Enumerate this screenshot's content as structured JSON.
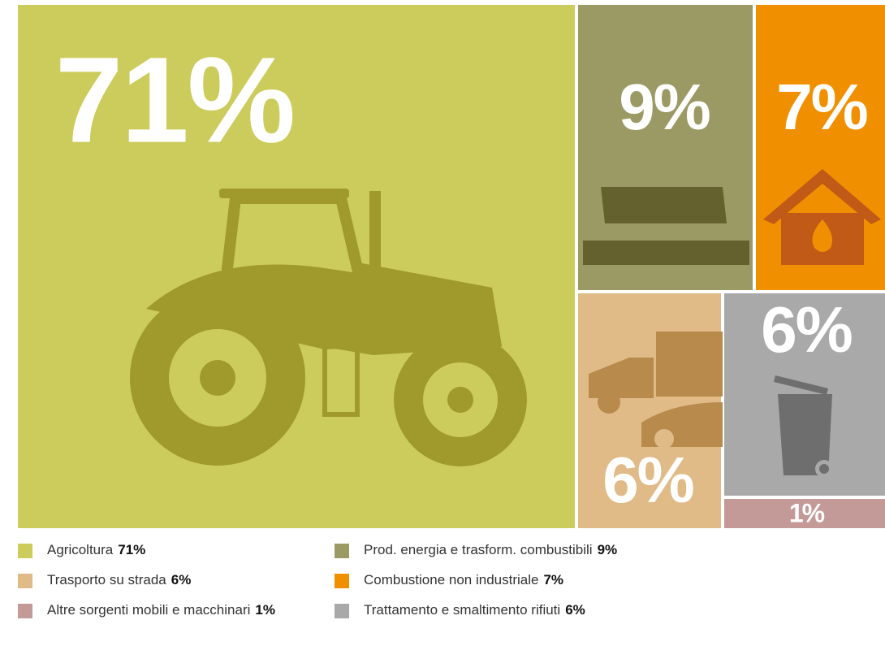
{
  "chart_data": {
    "type": "treemap",
    "categories": [
      "Agricoltura",
      "Prod. energia e trasform. combustibili",
      "Combustione non industriale",
      "Trasporto su strada",
      "Trattamento e smaltimento rifiuti",
      "Altre sorgenti mobili e macchinari"
    ],
    "values": [
      71,
      9,
      7,
      6,
      6,
      1
    ],
    "value_labels": [
      "71%",
      "9%",
      "7%",
      "6%",
      "6%",
      "1%"
    ],
    "colors": [
      "#cccc5c",
      "#9c9a64",
      "#f09000",
      "#e0bb88",
      "#a9a9a9",
      "#c49a98"
    ]
  }
}
